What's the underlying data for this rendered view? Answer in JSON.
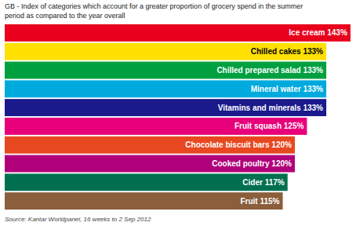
{
  "chart_data": {
    "type": "bar",
    "orientation": "horizontal",
    "title": "GB - Index of categories which account for a greater proportion of grocery spend in the summer\nperiod as compared to the year overall",
    "categories": [
      "Ice cream 143%",
      "Chilled cakes 133%",
      "Chilled prepared salad 133%",
      "Mineral water 133%",
      "Vitamins and minerals 133%",
      "Fruit squash 125%",
      "Chocolate biscuit bars 120%",
      "Cooked poultry 120%",
      "Cider 117%",
      "Fruit 115%"
    ],
    "values": [
      143,
      133,
      133,
      133,
      133,
      125,
      120,
      120,
      117,
      115
    ],
    "colors": [
      "#e8001c",
      "#ffe000",
      "#00a040",
      "#00aadd",
      "#1a1a8c",
      "#e8007a",
      "#e84820",
      "#b0007a",
      "#007050",
      "#8b5e3c"
    ],
    "xlim": [
      0,
      145
    ],
    "tick_labels": false,
    "grid": false,
    "source": "Source: Kantar Worldpanel,  16 weeks to 2 Sep 2012"
  }
}
